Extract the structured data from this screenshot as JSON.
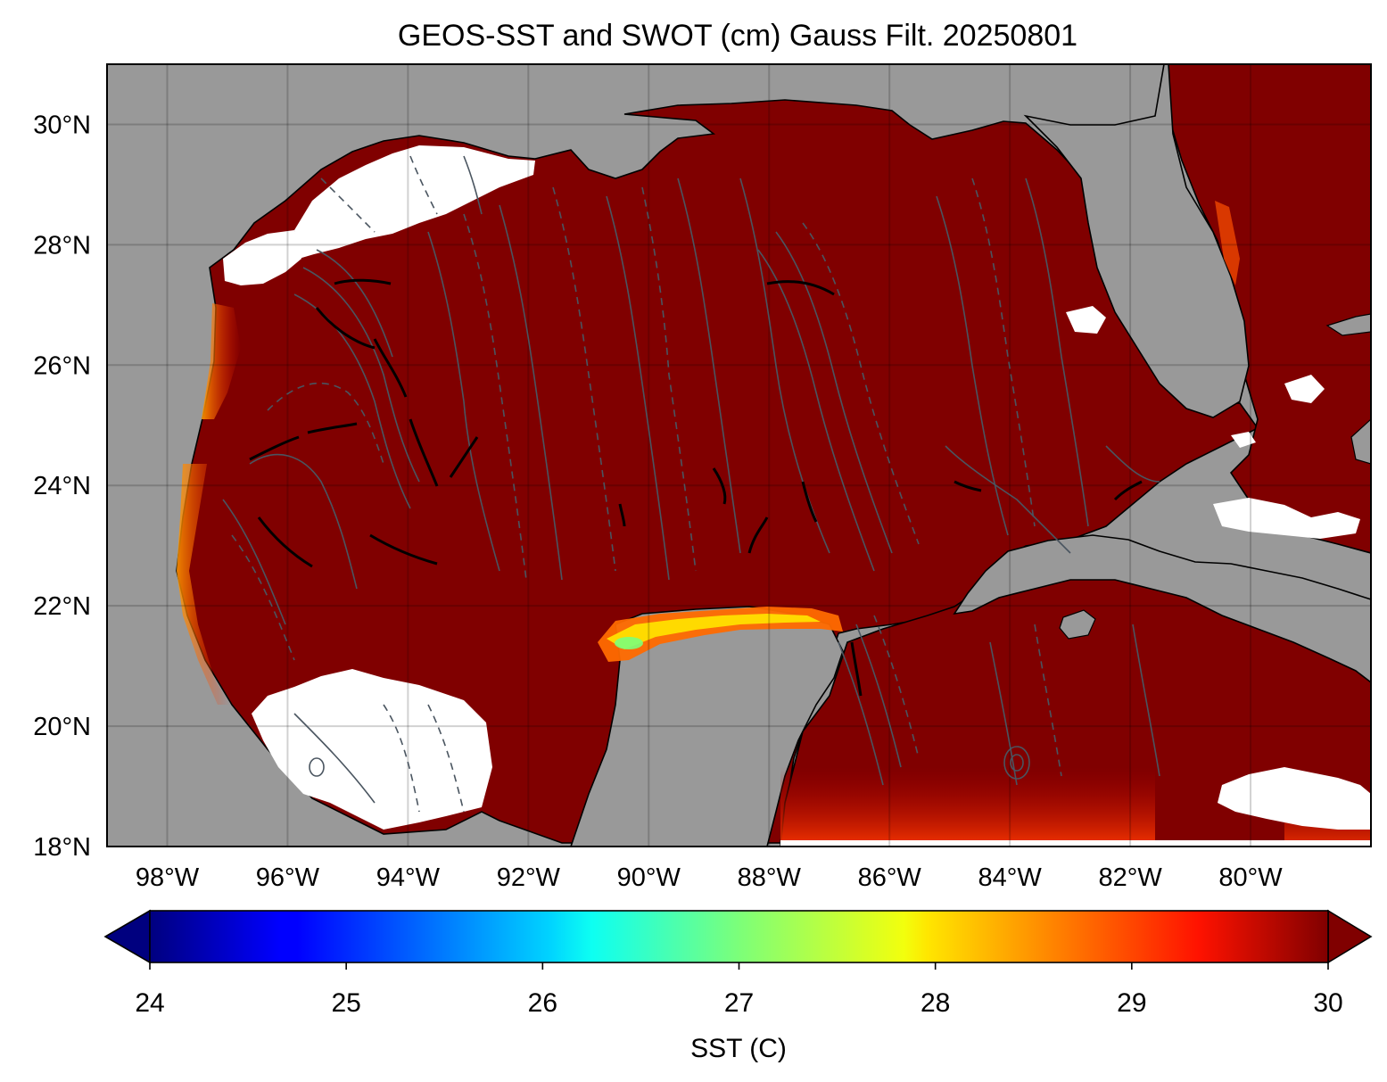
{
  "title": "GEOS-SST  and SWOT (cm) Gauss Filt. 20250801",
  "map": {
    "lon_range": [
      -99,
      -78
    ],
    "lat_range": [
      18,
      31
    ],
    "lat_ticks": [
      {
        "value": 30,
        "label": "30°N"
      },
      {
        "value": 28,
        "label": "28°N"
      },
      {
        "value": 26,
        "label": "26°N"
      },
      {
        "value": 24,
        "label": "24°N"
      },
      {
        "value": 22,
        "label": "22°N"
      },
      {
        "value": 20,
        "label": "20°N"
      },
      {
        "value": 18,
        "label": "18°N"
      }
    ],
    "lon_ticks": [
      {
        "value": -98,
        "label": "98°W"
      },
      {
        "value": -96,
        "label": "96°W"
      },
      {
        "value": -94,
        "label": "94°W"
      },
      {
        "value": -92,
        "label": "92°W"
      },
      {
        "value": -90,
        "label": "90°W"
      },
      {
        "value": -88,
        "label": "88°W"
      },
      {
        "value": -86,
        "label": "86°W"
      },
      {
        "value": -84,
        "label": "84°W"
      },
      {
        "value": -82,
        "label": "82°W"
      },
      {
        "value": -80,
        "label": "80°W"
      }
    ],
    "grid": true,
    "colors": {
      "land": "#999999",
      "ocean": "#800000",
      "missing": "#ffffff",
      "contour": "#4a5560",
      "contour_strong": "#000000"
    }
  },
  "colorbar": {
    "label": "SST (C)",
    "min": 24,
    "max": 30,
    "extend": "both",
    "colormap": "jet",
    "ticks": [
      {
        "value": 24,
        "label": "24"
      },
      {
        "value": 25,
        "label": "25"
      },
      {
        "value": 26,
        "label": "26"
      },
      {
        "value": 27,
        "label": "27"
      },
      {
        "value": 28,
        "label": "28"
      },
      {
        "value": 29,
        "label": "29"
      },
      {
        "value": 30,
        "label": "30"
      }
    ]
  }
}
